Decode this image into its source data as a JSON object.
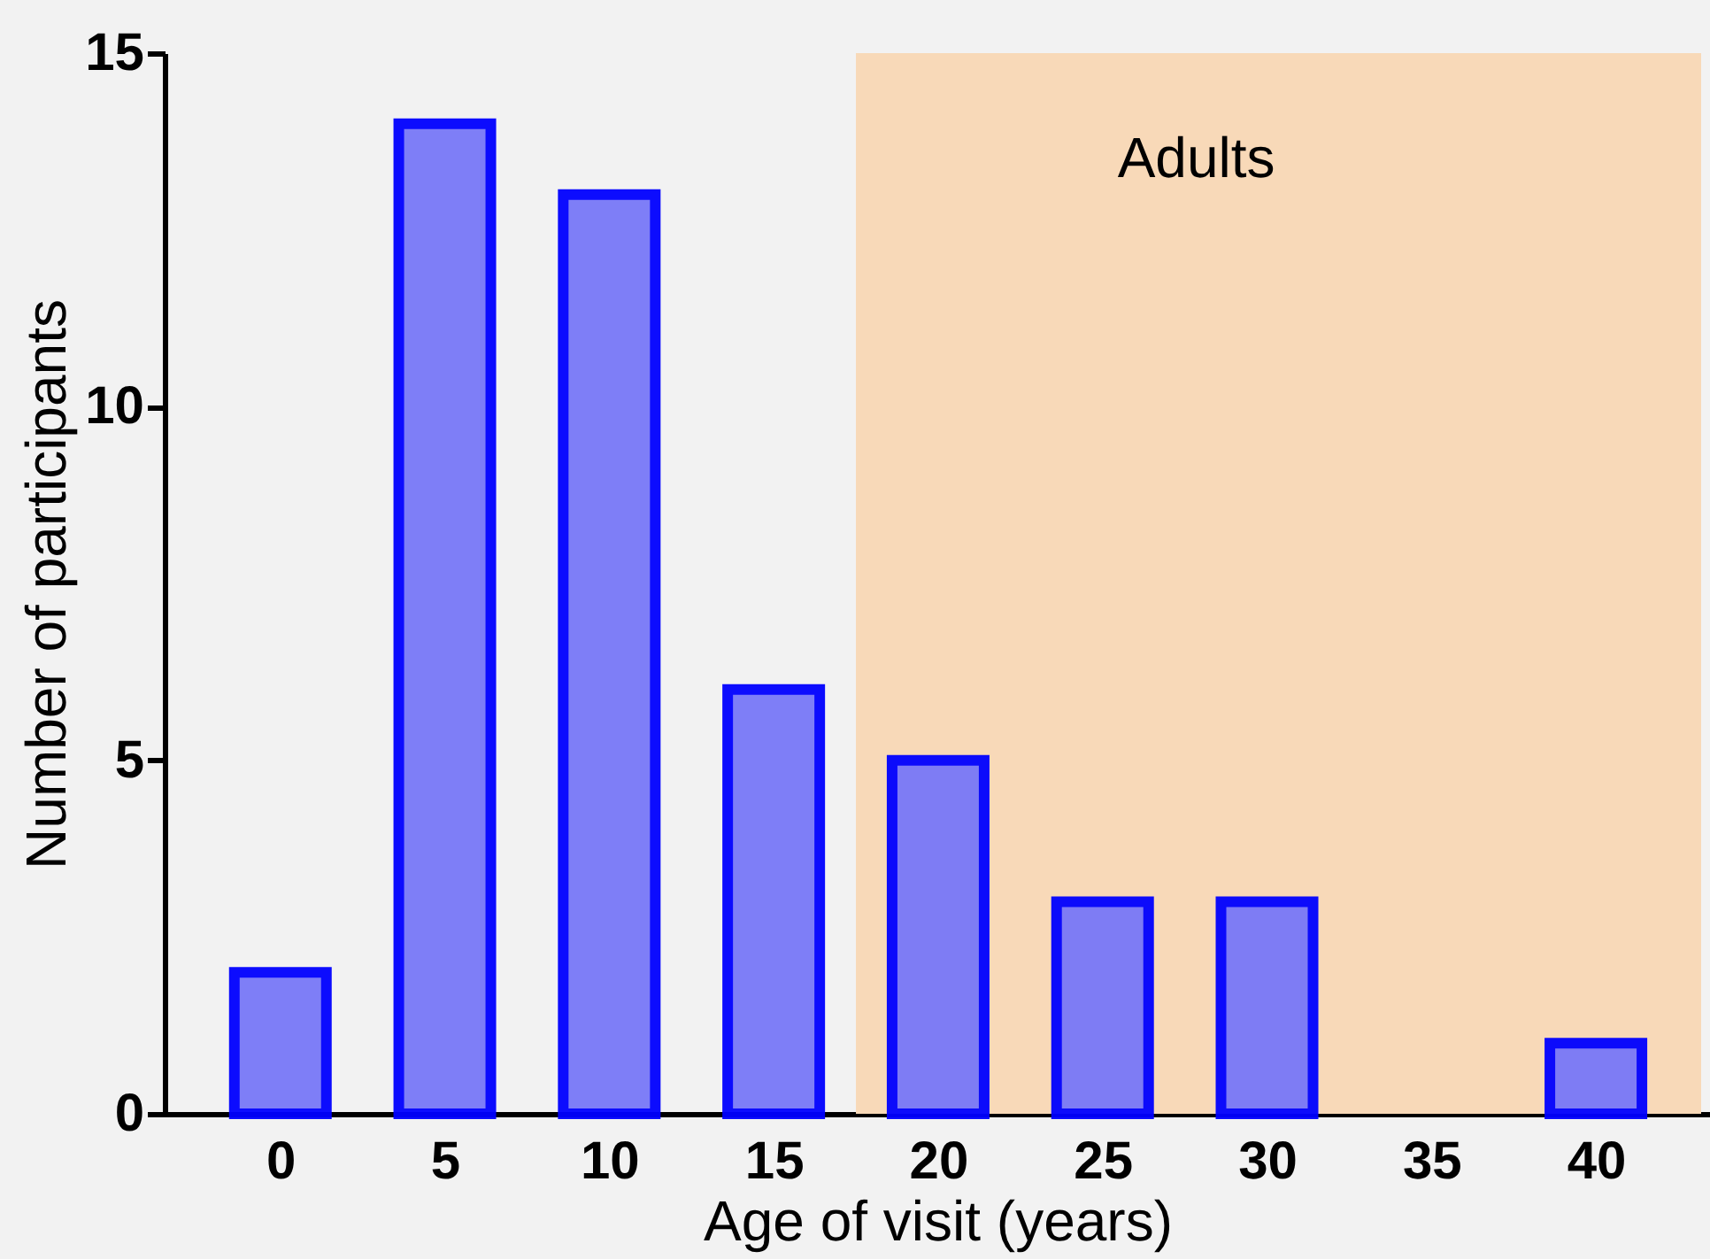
{
  "chart_data": {
    "type": "bar",
    "xlabel": "Age of visit (years)",
    "ylabel": "Number of participants",
    "x": [
      0,
      5,
      10,
      15,
      20,
      25,
      30,
      35,
      40
    ],
    "series": [
      {
        "color": "#7878f8",
        "values": [
          2,
          14,
          13,
          6,
          5,
          3,
          3,
          0,
          1
        ]
      }
    ],
    "xlim": [
      -3.25,
      43.2
    ],
    "xticks": [
      0,
      5,
      10,
      15,
      20,
      25,
      30,
      35,
      40
    ],
    "ylim": [
      0,
      15
    ],
    "yticks": [
      0,
      5,
      10,
      15
    ],
    "bands": [
      {
        "axis": "x",
        "from": 17.5,
        "to": 43.2,
        "label": "Adults",
        "color": "#f8d9b8"
      }
    ],
    "grid": false
  }
}
